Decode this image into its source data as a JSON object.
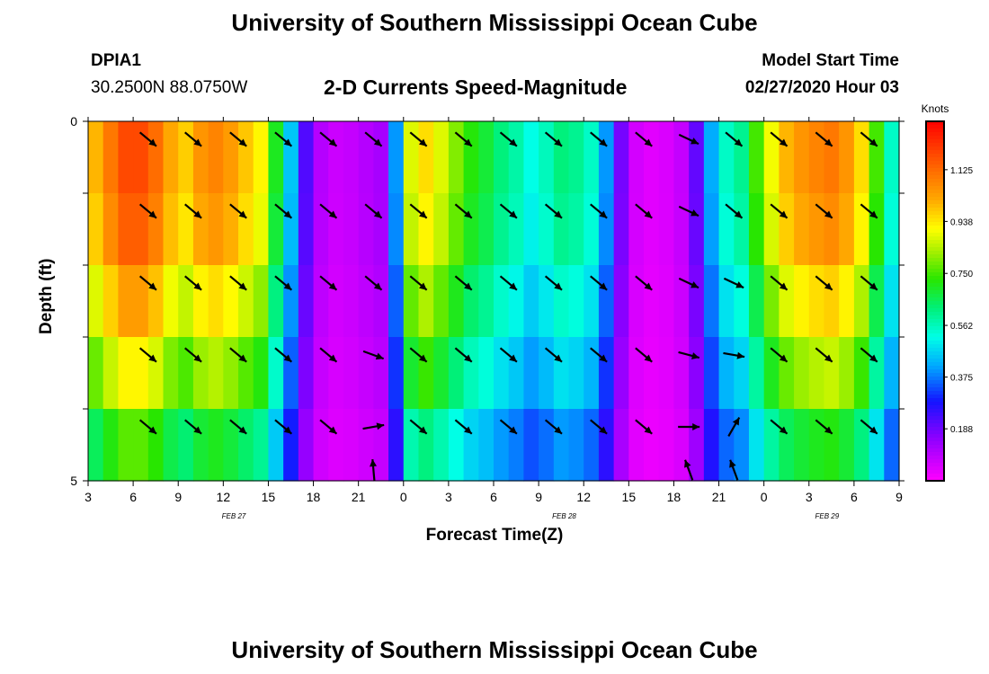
{
  "header": {
    "top_title": "University of Southern Mississippi Ocean Cube",
    "bottom_title": "University of Southern Mississippi Ocean Cube",
    "station": "DPIA1",
    "coordinates": "30.2500N 88.0750W",
    "model_start_label": "Model Start Time",
    "model_start_value": "02/27/2020 Hour 03"
  },
  "chart_data": {
    "type": "heatmap",
    "title": "2-D Currents Speed-Magnitude",
    "xlabel": "Forecast Time(Z)",
    "ylabel": "Depth (ft)",
    "y_range": [
      0,
      5
    ],
    "y_tick_labels": [
      "0",
      "5"
    ],
    "x_tick_labels": [
      "3",
      "6",
      "9",
      "12",
      "15",
      "18",
      "21",
      "0",
      "3",
      "6",
      "9",
      "12",
      "15",
      "18",
      "21",
      "0",
      "3",
      "6",
      "9"
    ],
    "date_labels": [
      "FEB 27",
      "FEB 28",
      "FEB 29"
    ],
    "colorbar": {
      "unit": "Knots",
      "min": 0,
      "max": 1.3,
      "tick_labels": [
        "1.125",
        "0.938",
        "0.750",
        "0.562",
        "0.375",
        "0.188"
      ],
      "tick_values": [
        1.125,
        0.938,
        0.75,
        0.562,
        0.375,
        0.188
      ]
    },
    "columns_hours": 54,
    "depth_layers": 5,
    "speed_profile_top_knots": [
      1.0,
      1.1,
      1.18,
      1.18,
      1.12,
      1.02,
      0.97,
      1.05,
      1.08,
      1.04,
      0.98,
      0.92,
      0.7,
      0.45,
      0.22,
      0.1,
      0.07,
      0.08,
      0.1,
      0.12,
      0.4,
      0.88,
      0.95,
      0.88,
      0.8,
      0.72,
      0.68,
      0.62,
      0.58,
      0.52,
      0.56,
      0.62,
      0.6,
      0.55,
      0.4,
      0.18,
      0.06,
      0.04,
      0.05,
      0.08,
      0.2,
      0.42,
      0.55,
      0.6,
      0.75,
      0.9,
      1.0,
      1.05,
      1.08,
      1.1,
      1.05,
      0.95,
      0.75,
      0.55
    ],
    "depth_factors": [
      1.0,
      0.97,
      0.88,
      0.78,
      0.65,
      0.45
    ],
    "arrow_hours": [
      4,
      7,
      10,
      13,
      16,
      19,
      22,
      25,
      28,
      31,
      34,
      37,
      40,
      43,
      46,
      49,
      52
    ],
    "arrow_depths_ft": [
      0.25,
      1.25,
      2.25,
      3.25,
      4.25,
      4.85
    ],
    "arrow_dir_deg_clockwise_from_east": [
      [
        40,
        40,
        40,
        40,
        40,
        40,
        40,
        40,
        40,
        40,
        40,
        40,
        25,
        40,
        40,
        40,
        40
      ],
      [
        40,
        40,
        40,
        40,
        40,
        40,
        40,
        40,
        40,
        40,
        40,
        40,
        25,
        40,
        40,
        40,
        40
      ],
      [
        40,
        40,
        40,
        40,
        40,
        40,
        40,
        40,
        40,
        40,
        40,
        40,
        25,
        25,
        40,
        40,
        40
      ],
      [
        40,
        40,
        40,
        40,
        40,
        20,
        40,
        40,
        40,
        40,
        40,
        40,
        15,
        10,
        40,
        40,
        40
      ],
      [
        40,
        40,
        40,
        40,
        40,
        -10,
        40,
        40,
        40,
        40,
        40,
        40,
        0,
        -60,
        40,
        40,
        40
      ],
      [
        null,
        null,
        null,
        null,
        null,
        -95,
        null,
        null,
        null,
        null,
        null,
        null,
        -110,
        -110,
        null,
        null,
        null
      ]
    ]
  }
}
